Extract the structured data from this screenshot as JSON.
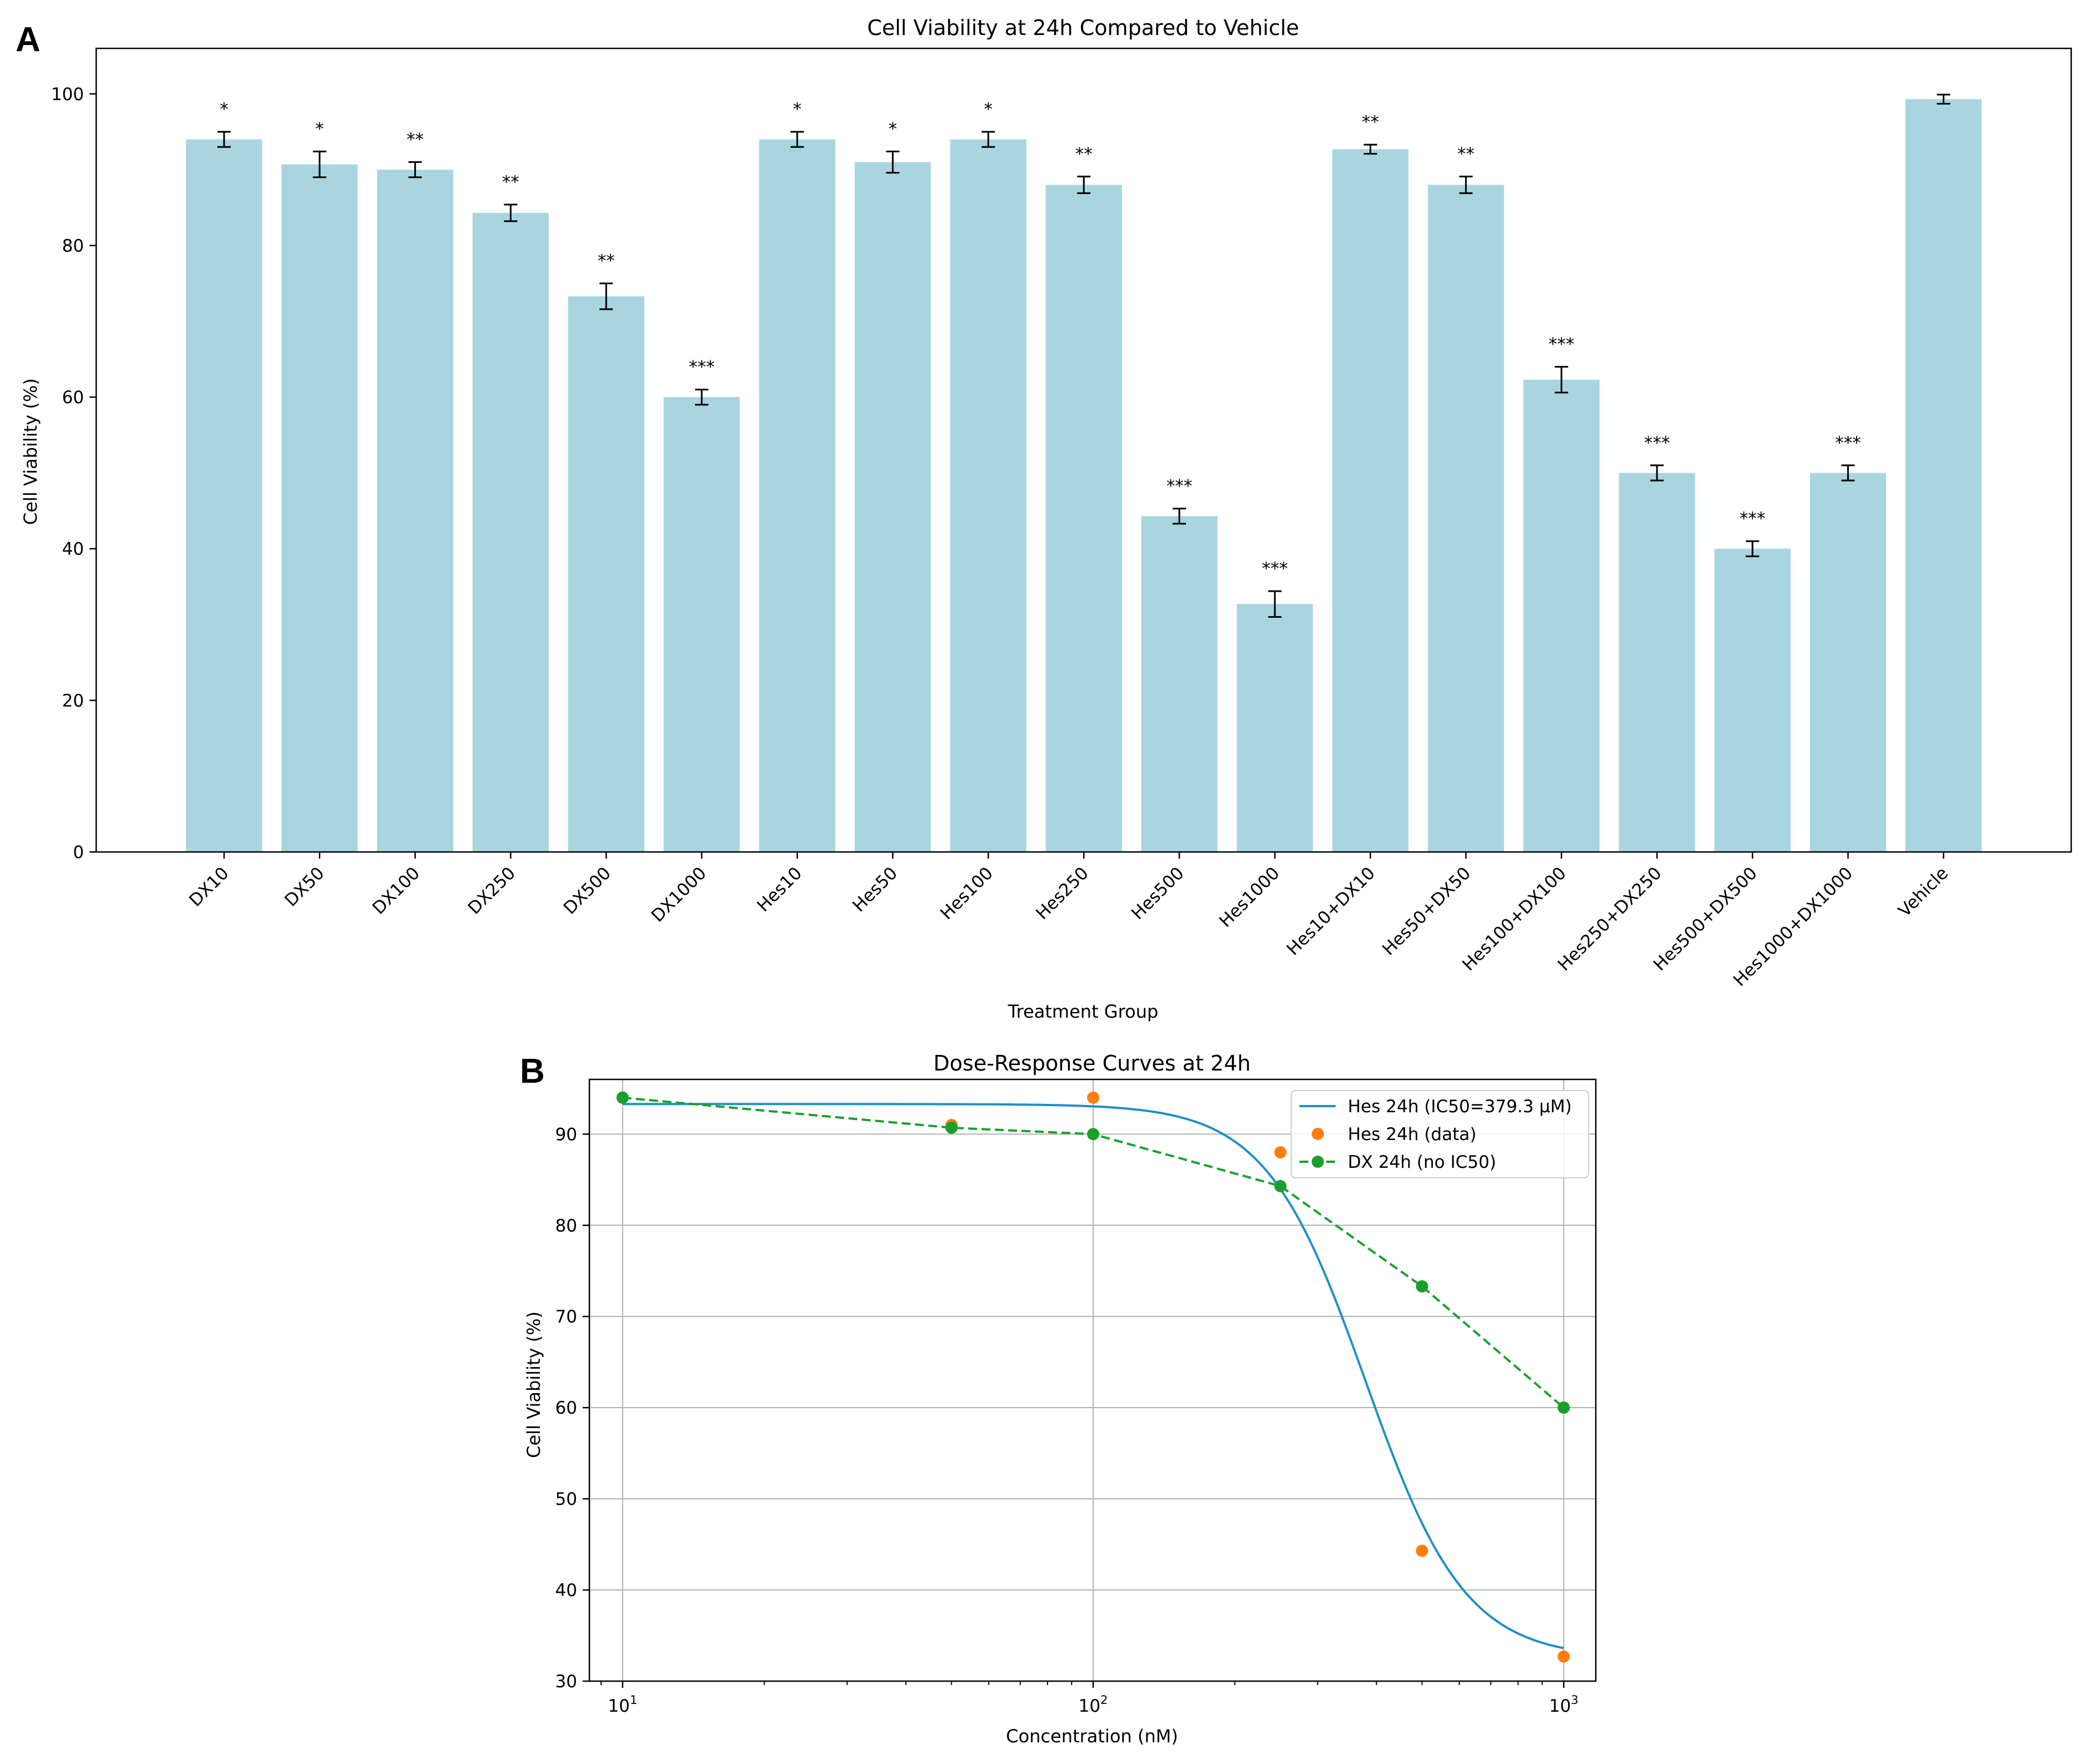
{
  "panels": {
    "a_letter": "A",
    "b_letter": "B"
  },
  "chart_data": [
    {
      "type": "bar",
      "title": "Cell Viability at 24h Compared to Vehicle",
      "xlabel": "Treatment Group",
      "ylabel": "Cell Viability (%)",
      "ylim": [
        0,
        106
      ],
      "yticks": [
        0,
        20,
        40,
        60,
        80,
        100
      ],
      "grid": false,
      "bar_color": "#a8d5e0",
      "categories": [
        "DX10",
        "DX50",
        "DX100",
        "DX250",
        "DX500",
        "DX1000",
        "Hes10",
        "Hes50",
        "Hes100",
        "Hes250",
        "Hes500",
        "Hes1000",
        "Hes10+DX10",
        "Hes50+DX50",
        "Hes100+DX100",
        "Hes250+DX250",
        "Hes500+DX500",
        "Hes1000+DX1000",
        "Vehicle"
      ],
      "values": [
        94.0,
        90.7,
        90.0,
        84.3,
        73.3,
        60.0,
        94.0,
        91.0,
        94.0,
        88.0,
        44.3,
        32.7,
        92.7,
        88.0,
        62.3,
        50.0,
        40.0,
        50.0,
        99.3
      ],
      "errors": [
        1.0,
        1.7,
        1.0,
        1.1,
        1.7,
        1.0,
        1.0,
        1.4,
        1.0,
        1.1,
        1.0,
        1.7,
        0.6,
        1.1,
        1.7,
        1.0,
        1.0,
        1.0,
        0.6
      ],
      "significance": [
        "*",
        "*",
        "**",
        "**",
        "**",
        "***",
        "*",
        "*",
        "*",
        "**",
        "***",
        "***",
        "**",
        "**",
        "***",
        "***",
        "***",
        "***",
        ""
      ]
    },
    {
      "type": "line",
      "title": "Dose-Response Curves at 24h",
      "xlabel": "Concentration (nM)",
      "ylabel": "Cell Viability (%)",
      "xscale": "log",
      "xlim": [
        8.5,
        1170
      ],
      "ylim": [
        30,
        96
      ],
      "xticks": [
        10,
        100,
        1000
      ],
      "xtick_labels": [
        {
          "base": "10",
          "exp": "1"
        },
        {
          "base": "10",
          "exp": "2"
        },
        {
          "base": "10",
          "exp": "3"
        }
      ],
      "yticks": [
        30,
        40,
        50,
        60,
        70,
        80,
        90
      ],
      "grid": true,
      "legend_position": "top-right",
      "series": [
        {
          "name": "Hes 24h (IC50=379.3 μM)",
          "kind": "fit",
          "color": "#1f8fc4",
          "bottom": 32.5,
          "top": 93.3,
          "ic50": 379.3,
          "hill": 4.1,
          "x_range": [
            10,
            1000
          ]
        },
        {
          "name": "Hes 24h (data)",
          "kind": "scatter",
          "color": "#ff7f0e",
          "x": [
            10,
            50,
            100,
            250,
            500,
            1000
          ],
          "y": [
            94.0,
            91.0,
            94.0,
            88.0,
            44.3,
            32.7
          ]
        },
        {
          "name": "DX 24h (no IC50)",
          "kind": "dashed-line-markers",
          "color": "#18a02c",
          "x": [
            10,
            50,
            100,
            250,
            500,
            1000
          ],
          "y": [
            94.0,
            90.7,
            90.0,
            84.3,
            73.3,
            60.0
          ]
        }
      ]
    }
  ]
}
